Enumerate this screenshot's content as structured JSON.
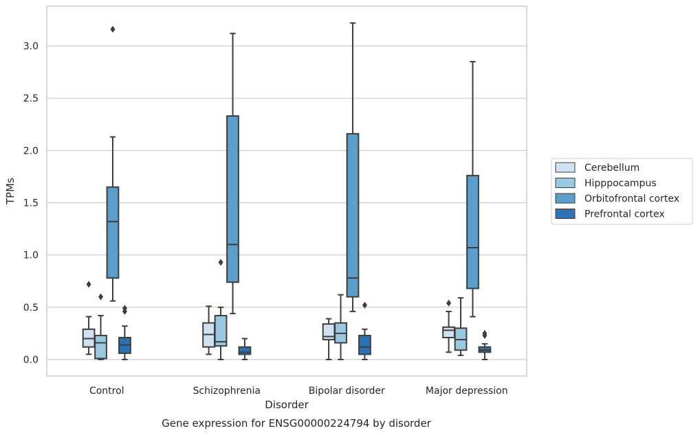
{
  "chart_data": {
    "type": "box",
    "title": "",
    "caption": "Gene expression for ENSG00000224794 by disorder",
    "xlabel": "Disorder",
    "ylabel": "TPMs",
    "ylim": [
      -0.16,
      3.42
    ],
    "yticks": [
      0.0,
      0.5,
      1.0,
      1.5,
      2.0,
      2.5,
      3.0
    ],
    "ytick_labels": [
      "0.0",
      "0.5",
      "1.0",
      "1.5",
      "2.0",
      "2.5",
      "3.0"
    ],
    "grid": "horizontal",
    "legend_position": "right",
    "categories": [
      "Control",
      "Schizophrenia",
      "Bipolar disorder",
      "Major depression"
    ],
    "series": [
      {
        "name": "Cerebellum",
        "color": "#d0e1f2",
        "boxes": [
          {
            "whisker_low": 0.05,
            "q1": 0.12,
            "median": 0.2,
            "q3": 0.29,
            "whisker_high": 0.41,
            "outliers": [
              0.72
            ]
          },
          {
            "whisker_low": 0.05,
            "q1": 0.12,
            "median": 0.24,
            "q3": 0.35,
            "whisker_high": 0.51,
            "outliers": []
          },
          {
            "whisker_low": 0.0,
            "q1": 0.19,
            "median": 0.22,
            "q3": 0.34,
            "whisker_high": 0.39,
            "outliers": []
          },
          {
            "whisker_low": 0.07,
            "q1": 0.21,
            "median": 0.28,
            "q3": 0.31,
            "whisker_high": 0.46,
            "outliers": [
              0.54
            ]
          }
        ]
      },
      {
        "name": "Hipppocampus",
        "color": "#9ac8e0",
        "boxes": [
          {
            "whisker_low": 0.0,
            "q1": 0.01,
            "median": 0.16,
            "q3": 0.23,
            "whisker_high": 0.42,
            "outliers": [
              0.6
            ]
          },
          {
            "whisker_low": 0.0,
            "q1": 0.13,
            "median": 0.17,
            "q3": 0.42,
            "whisker_high": 0.5,
            "outliers": [
              0.93
            ]
          },
          {
            "whisker_low": 0.0,
            "q1": 0.16,
            "median": 0.25,
            "q3": 0.35,
            "whisker_high": 0.62,
            "outliers": []
          },
          {
            "whisker_low": 0.04,
            "q1": 0.09,
            "median": 0.19,
            "q3": 0.3,
            "whisker_high": 0.59,
            "outliers": []
          }
        ]
      },
      {
        "name": "Orbitofrontal cortex",
        "color": "#5a9ec9",
        "boxes": [
          {
            "whisker_low": 0.56,
            "q1": 0.78,
            "median": 1.32,
            "q3": 1.65,
            "whisker_high": 2.13,
            "outliers": [
              3.16
            ]
          },
          {
            "whisker_low": 0.44,
            "q1": 0.74,
            "median": 1.1,
            "q3": 2.33,
            "whisker_high": 3.12,
            "outliers": []
          },
          {
            "whisker_low": 0.46,
            "q1": 0.6,
            "median": 0.78,
            "q3": 2.16,
            "whisker_high": 3.22,
            "outliers": []
          },
          {
            "whisker_low": 0.41,
            "q1": 0.68,
            "median": 1.07,
            "q3": 1.76,
            "whisker_high": 2.85,
            "outliers": []
          }
        ]
      },
      {
        "name": "Prefrontal cortex",
        "color": "#2d72b4",
        "boxes": [
          {
            "whisker_low": 0.0,
            "q1": 0.06,
            "median": 0.14,
            "q3": 0.21,
            "whisker_high": 0.32,
            "outliers": [
              0.46,
              0.49
            ]
          },
          {
            "whisker_low": 0.0,
            "q1": 0.05,
            "median": 0.07,
            "q3": 0.12,
            "whisker_high": 0.2,
            "outliers": []
          },
          {
            "whisker_low": 0.0,
            "q1": 0.05,
            "median": 0.12,
            "q3": 0.23,
            "whisker_high": 0.29,
            "outliers": [
              0.52
            ]
          },
          {
            "whisker_low": 0.0,
            "q1": 0.07,
            "median": 0.09,
            "q3": 0.12,
            "whisker_high": 0.15,
            "outliers": [
              0.23,
              0.25
            ]
          }
        ]
      }
    ]
  }
}
